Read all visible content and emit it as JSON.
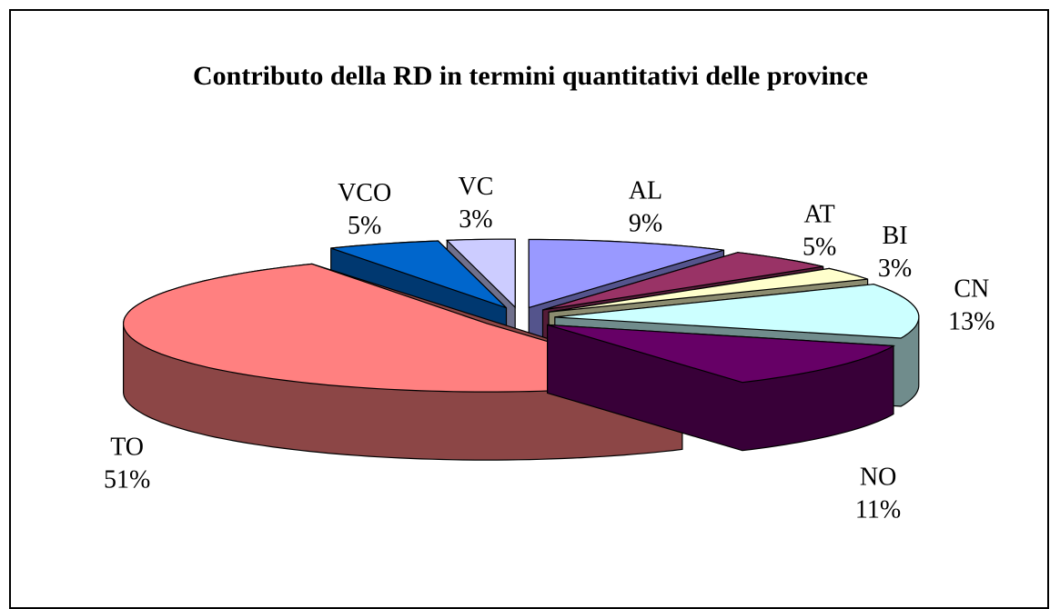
{
  "chart_data": {
    "type": "pie",
    "title": "Contributo della RD in termini quantitativi delle province",
    "categories": [
      "AL",
      "AT",
      "BI",
      "CN",
      "NO",
      "TO",
      "VCO",
      "VC"
    ],
    "values": [
      9,
      5,
      3,
      13,
      11,
      51,
      5,
      3
    ],
    "value_labels": [
      "9%",
      "5%",
      "3%",
      "13%",
      "11%",
      "51%",
      "5%",
      "3%"
    ],
    "colors": [
      "#9999ff",
      "#993366",
      "#ffffcc",
      "#ccffff",
      "#660066",
      "#ff8080",
      "#0066cc",
      "#ccccff"
    ]
  }
}
